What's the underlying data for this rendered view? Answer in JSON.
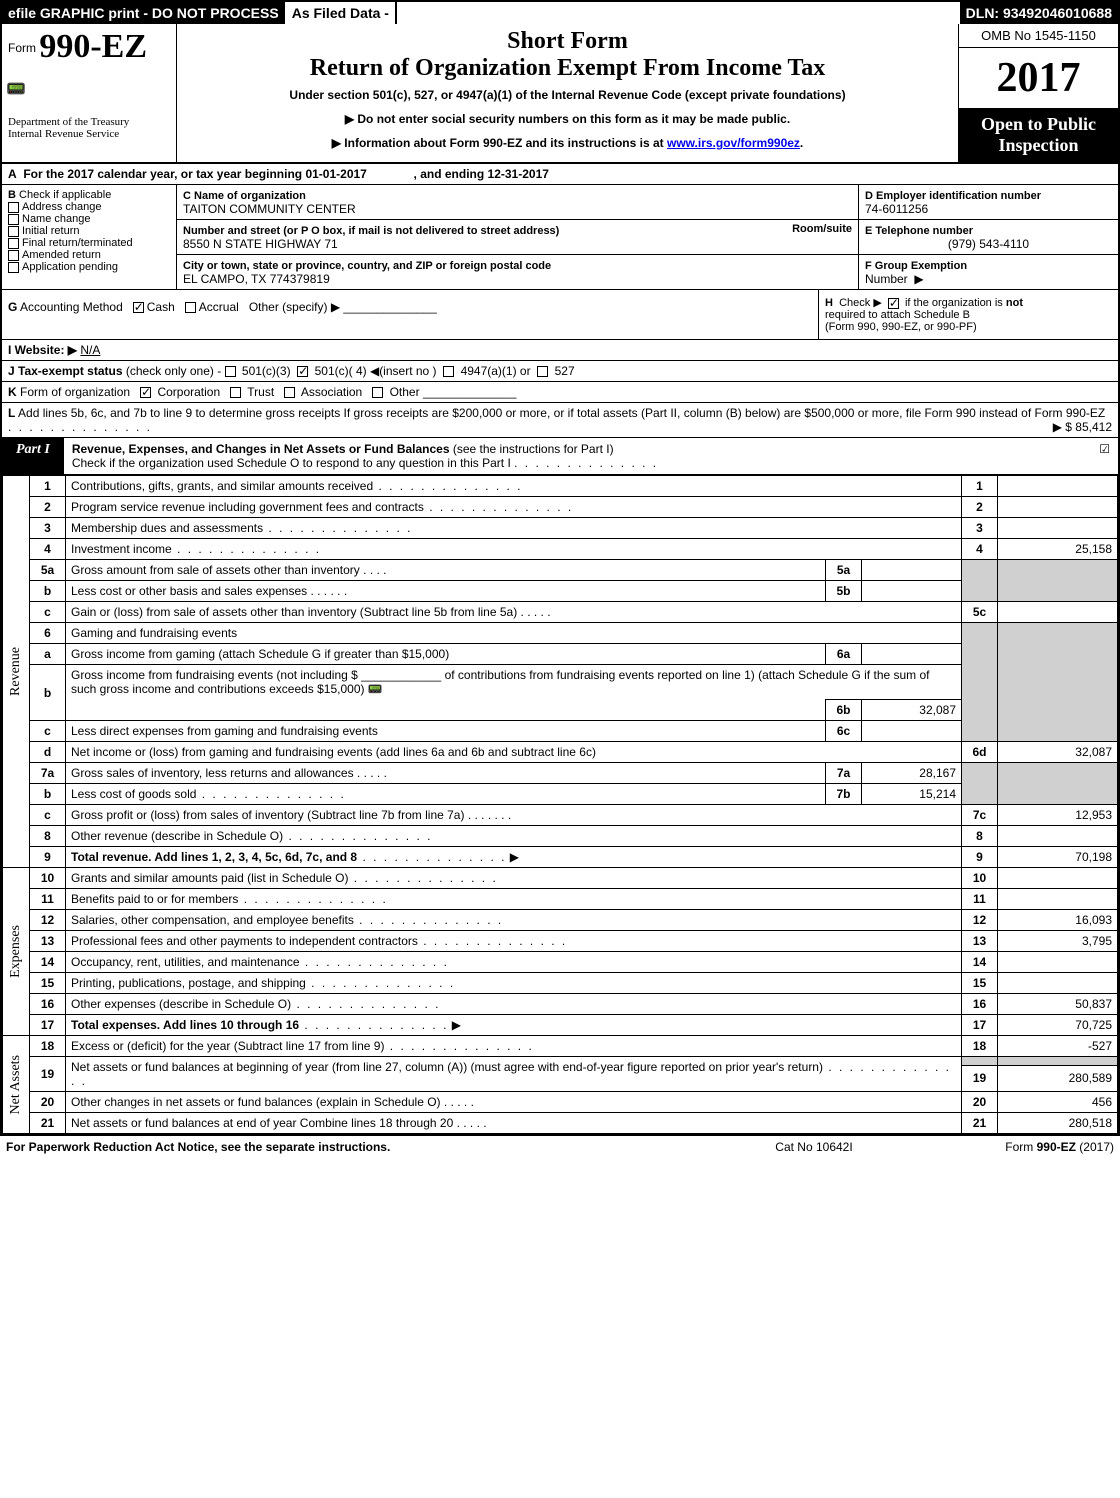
{
  "topbar": {
    "efile": "efile GRAPHIC print - DO NOT PROCESS",
    "asfiled": "As Filed Data -",
    "dln": "DLN: 93492046010688"
  },
  "header": {
    "form_prefix": "Form",
    "form_no": "990-EZ",
    "dept1": "Department of the Treasury",
    "dept2": "Internal Revenue Service",
    "short_form": "Short Form",
    "title2": "Return of Organization Exempt From Income Tax",
    "sub": "Under section 501(c), 527, or 4947(a)(1) of the Internal Revenue Code (except private foundations)",
    "arrow1": "Do not enter social security numbers on this form as it may be made public.",
    "arrow2_pre": "Information about Form 990-EZ and its instructions is at ",
    "arrow2_link": "www.irs.gov/form990ez",
    "omb": "OMB No 1545-1150",
    "year": "2017",
    "open_pub1": "Open to Public",
    "open_pub2": "Inspection"
  },
  "rowA": {
    "label": "A",
    "text": "For the 2017 calendar year, or tax year beginning 01-01-2017",
    "ending": ", and ending 12-31-2017"
  },
  "B": {
    "label": "B",
    "check_if": "Check if applicable",
    "items": [
      "Address change",
      "Name change",
      "Initial return",
      "Final return/terminated",
      "Amended return",
      "Application pending"
    ]
  },
  "C": {
    "label": "C",
    "lbl": "Name of organization",
    "val": "TAITON COMMUNITY CENTER",
    "addr_lbl": "Number and street (or P O box, if mail is not delivered to street address)",
    "room_lbl": "Room/suite",
    "addr": "8550 N STATE HIGHWAY 71",
    "city_lbl": "City or town, state or province, country, and ZIP or foreign postal code",
    "city": "EL CAMPO, TX  774379819"
  },
  "D": {
    "lbl": "D Employer identification number",
    "val": "74-6011256"
  },
  "E": {
    "lbl": "E Telephone number",
    "val": "(979) 543-4110"
  },
  "F": {
    "lbl": "F Group Exemption",
    "lbl2": "Number",
    "arrow": "▶"
  },
  "G": {
    "label": "G",
    "text": "Accounting Method",
    "cash": "Cash",
    "accrual": "Accrual",
    "other": "Other (specify) ▶"
  },
  "H": {
    "label": "H",
    "text1": "Check ▶",
    "text2": "if the organization is",
    "not": "not",
    "text3": "required to attach Schedule B",
    "text4": "(Form 990, 990-EZ, or 990-PF)"
  },
  "I": {
    "label": "I Website: ▶",
    "val": "N/A"
  },
  "J": {
    "label": "J Tax-exempt status",
    "text": "(check only one) -",
    "opts": [
      "501(c)(3)",
      "501(c)( 4)",
      "(insert no )",
      "4947(a)(1) or",
      "527"
    ]
  },
  "K": {
    "label": "K",
    "text": "Form of organization",
    "opts": [
      "Corporation",
      "Trust",
      "Association",
      "Other"
    ]
  },
  "L": {
    "label": "L",
    "text": "Add lines 5b, 6c, and 7b to line 9 to determine gross receipts If gross receipts are $200,000 or more, or if total assets (Part II, column (B) below) are $500,000 or more, file Form 990 instead of Form 990-EZ",
    "amt": "▶ $ 85,412"
  },
  "partI": {
    "tab": "Part I",
    "title": "Revenue, Expenses, and Changes in Net Assets or Fund Balances",
    "inst": "(see the instructions for Part I)",
    "sub": "Check if the organization used Schedule O to respond to any question in this Part I",
    "checked": "☑"
  },
  "sections": {
    "revenue": "Revenue",
    "expenses": "Expenses",
    "netassets": "Net Assets"
  },
  "lines": {
    "1": {
      "desc": "Contributions, gifts, grants, and similar amounts received",
      "val": ""
    },
    "2": {
      "desc": "Program service revenue including government fees and contracts",
      "val": ""
    },
    "3": {
      "desc": "Membership dues and assessments",
      "val": ""
    },
    "4": {
      "desc": "Investment income",
      "val": "25,158"
    },
    "5a": {
      "desc": "Gross amount from sale of assets other than inventory",
      "subval": ""
    },
    "5b": {
      "desc": "Less cost or other basis and sales expenses",
      "subval": ""
    },
    "5c": {
      "desc": "Gain or (loss) from sale of assets other than inventory (Subtract line 5b from line 5a)",
      "val": ""
    },
    "6": {
      "desc": "Gaming and fundraising events"
    },
    "6a": {
      "desc": "Gross income from gaming (attach Schedule G if greater than $15,000)",
      "subval": ""
    },
    "6b_pre": "Gross income from fundraising events (not including $",
    "6b_post": "of contributions from fundraising events reported on line 1) (attach Schedule G if the sum of such gross income and contributions exceeds $15,000)",
    "6b": {
      "subval": "32,087"
    },
    "6c": {
      "desc": "Less direct expenses from gaming and fundraising events",
      "subval": ""
    },
    "6d": {
      "desc": "Net income or (loss) from gaming and fundraising events (add lines 6a and 6b and subtract line 6c)",
      "val": "32,087"
    },
    "7a": {
      "desc": "Gross sales of inventory, less returns and allowances",
      "subval": "28,167"
    },
    "7b": {
      "desc": "Less cost of goods sold",
      "subval": "15,214"
    },
    "7c": {
      "desc": "Gross profit or (loss) from sales of inventory (Subtract line 7b from line 7a)",
      "val": "12,953"
    },
    "8": {
      "desc": "Other revenue (describe in Schedule O)",
      "val": ""
    },
    "9": {
      "desc": "Total revenue. Add lines 1, 2, 3, 4, 5c, 6d, 7c, and 8",
      "val": "70,198"
    },
    "10": {
      "desc": "Grants and similar amounts paid (list in Schedule O)",
      "val": ""
    },
    "11": {
      "desc": "Benefits paid to or for members",
      "val": ""
    },
    "12": {
      "desc": "Salaries, other compensation, and employee benefits",
      "val": "16,093"
    },
    "13": {
      "desc": "Professional fees and other payments to independent contractors",
      "val": "3,795"
    },
    "14": {
      "desc": "Occupancy, rent, utilities, and maintenance",
      "val": ""
    },
    "15": {
      "desc": "Printing, publications, postage, and shipping",
      "val": ""
    },
    "16": {
      "desc": "Other expenses (describe in Schedule O)",
      "val": "50,837"
    },
    "17": {
      "desc": "Total expenses. Add lines 10 through 16",
      "val": "70,725"
    },
    "18": {
      "desc": "Excess or (deficit) for the year (Subtract line 17 from line 9)",
      "val": "-527"
    },
    "19": {
      "desc": "Net assets or fund balances at beginning of year (from line 27, column (A)) (must agree with end-of-year figure reported on prior year's return)",
      "val": "280,589"
    },
    "20": {
      "desc": "Other changes in net assets or fund balances (explain in Schedule O)",
      "val": "456"
    },
    "21": {
      "desc": "Net assets or fund balances at end of year Combine lines 18 through 20",
      "val": "280,518"
    }
  },
  "footer": {
    "l": "For Paperwork Reduction Act Notice, see the separate instructions.",
    "m": "Cat No 10642I",
    "r": "Form 990-EZ (2017)"
  },
  "colors": {
    "black": "#000000",
    "white": "#ffffff",
    "gray": "#d0d0d0",
    "link": "#0000ee"
  }
}
